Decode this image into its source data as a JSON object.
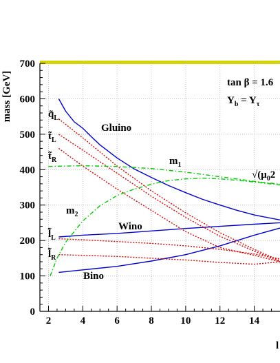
{
  "chart_data": {
    "type": "line",
    "ylabel": "mass [GeV]",
    "xlabel": "l",
    "xlim": [
      1.5,
      15.5
    ],
    "ylim": [
      0,
      700
    ],
    "x_ticks": [
      2,
      4,
      6,
      8,
      10,
      12,
      14
    ],
    "y_ticks": [
      0,
      100,
      200,
      300,
      400,
      500,
      600,
      700
    ],
    "grid": true,
    "colors": {
      "blue": "#0000cc",
      "red": "#dd0000",
      "green": "#00cc00",
      "top_band": "#d4d400"
    },
    "annotations": {
      "tanb": "tan β = 1.6",
      "yb_main": "Y",
      "yb_sub": "b",
      "yb_eq": " = Y",
      "yb_tau": "τ",
      "gluino": "Gluino",
      "wino": "Wino",
      "bino": "Bino",
      "m1_main": "m",
      "m1_sub": "1",
      "m2_main": "m",
      "m2_sub": "2",
      "sqrt_mu": "√(μ",
      "sqrt_sub": "0",
      "sqrt_tail": "2",
      "qL_main": "q̃",
      "qL_sub": "L",
      "tL_main": "t̃",
      "tL_sub": "L",
      "tR_main": "t̃",
      "tR_sub": "R",
      "lL_main": "l̃",
      "lL_sub": "L",
      "lR_main": "l̃",
      "lR_sub": "R"
    },
    "series": [
      {
        "style": "solid-blue",
        "x": [
          2.6,
          3.0,
          3.5,
          4.0,
          4.5,
          5.0,
          6.0,
          7.0,
          8.0,
          9.0,
          10.0,
          11.0,
          12.0,
          13.0,
          14.0,
          15.5
        ],
        "values": [
          600,
          565,
          535,
          517,
          493,
          470,
          433,
          402,
          378,
          355,
          335,
          316,
          300,
          285,
          272,
          258
        ]
      },
      {
        "style": "solid-blue",
        "x": [
          2.6,
          4,
          6,
          8,
          10,
          12,
          14,
          15.5
        ],
        "values": [
          210,
          215,
          220,
          227,
          234,
          240,
          246,
          250
        ]
      },
      {
        "style": "solid-blue",
        "x": [
          2.6,
          4,
          6,
          8,
          10,
          12,
          14,
          15.5
        ],
        "values": [
          110,
          117,
          127,
          142,
          160,
          185,
          215,
          235
        ]
      },
      {
        "style": "dash-red",
        "x": [
          2.6,
          4,
          6,
          8,
          10,
          12,
          14,
          15.5
        ],
        "values": [
          543,
          490,
          410,
          340,
          278,
          222,
          175,
          143
        ]
      },
      {
        "style": "dash-red",
        "x": [
          2.6,
          4,
          6,
          8,
          10,
          12,
          14,
          15.5
        ],
        "values": [
          500,
          455,
          390,
          325,
          265,
          212,
          170,
          140
        ]
      },
      {
        "style": "dash-red",
        "x": [
          2.6,
          4,
          6,
          8,
          10,
          12,
          14,
          15.5
        ],
        "values": [
          460,
          410,
          345,
          285,
          225,
          180,
          158,
          140
        ]
      },
      {
        "style": "dash-red",
        "x": [
          2.6,
          4,
          6,
          8,
          10,
          12,
          14,
          15.5
        ],
        "values": [
          205,
          202,
          197,
          192,
          185,
          175,
          162,
          148
        ]
      },
      {
        "style": "dash-red",
        "x": [
          2.6,
          4,
          6,
          8,
          10,
          12,
          14,
          15.5
        ],
        "values": [
          160,
          158,
          155,
          150,
          145,
          138,
          133,
          140
        ]
      },
      {
        "style": "dashdot-green",
        "x": [
          2,
          3,
          4,
          6,
          8,
          10,
          12,
          14,
          15.5
        ],
        "values": [
          409,
          410,
          411,
          409,
          403,
          393,
          380,
          367,
          359
        ]
      },
      {
        "style": "dashdot-green",
        "x": [
          2.1,
          2.5,
          3,
          4,
          5,
          6,
          7,
          8,
          9,
          10,
          11,
          12,
          13,
          14,
          15.5
        ],
        "values": [
          100,
          150,
          195,
          255,
          298,
          327,
          345,
          359,
          369,
          374,
          376,
          374,
          370,
          365,
          357
        ]
      }
    ]
  }
}
